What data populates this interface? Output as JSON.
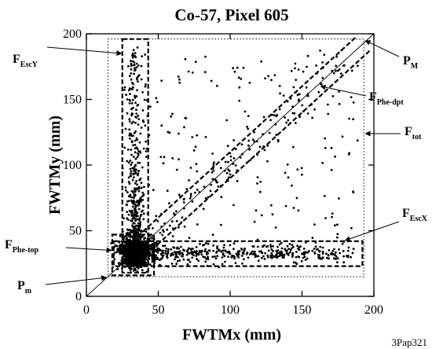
{
  "figure_id": "3Pap321",
  "chart_data": {
    "type": "scatter",
    "title": "Co-57, Pixel 605",
    "xlabel": "FWTMx (mm)",
    "ylabel": "FWTMy (mm)",
    "xlim": [
      0,
      200
    ],
    "ylim": [
      0,
      200
    ],
    "xticks": [
      0,
      50,
      100,
      150,
      200
    ],
    "yticks": [
      0,
      50,
      100,
      150,
      200
    ],
    "grid": false,
    "marker_color": "#000000",
    "regions": [
      {
        "name": "F_tot",
        "label": "F",
        "sub": "tot",
        "style": "dotted",
        "x": [
          15,
          193
        ],
        "y": [
          15,
          196
        ]
      },
      {
        "name": "F_EscY",
        "label": "F",
        "sub": "EscY",
        "style": "dashed",
        "x": [
          25,
          43
        ],
        "y": [
          18,
          196
        ]
      },
      {
        "name": "F_EscX",
        "label": "F",
        "sub": "EscX",
        "style": "dashed",
        "x": [
          19,
          192
        ],
        "y": [
          23,
          42
        ]
      },
      {
        "name": "F_Phe-top",
        "label": "F",
        "sub": "Phe-top",
        "style": "dashed",
        "x": [
          18,
          47
        ],
        "y": [
          16,
          47
        ]
      }
    ],
    "lines": [
      {
        "name": "diagonal",
        "style": "thin",
        "points": [
          [
            0,
            0
          ],
          [
            200,
            200
          ]
        ]
      },
      {
        "name": "F_Phe-dpt_upper",
        "style": "dashed",
        "points": [
          [
            32,
            42
          ],
          [
            188,
            198
          ]
        ]
      },
      {
        "name": "F_Phe-dpt_lower",
        "style": "dashed",
        "points": [
          [
            42,
            32
          ],
          [
            198,
            188
          ]
        ]
      }
    ],
    "annotations": [
      {
        "label": "P",
        "sub": "M",
        "point": [
          193,
          196
        ]
      },
      {
        "label": "P",
        "sub": "m",
        "point": [
          15,
          15
        ]
      },
      {
        "label": "F",
        "sub": "Phe-dpt",
        "point": [
          163,
          160
        ]
      }
    ]
  }
}
